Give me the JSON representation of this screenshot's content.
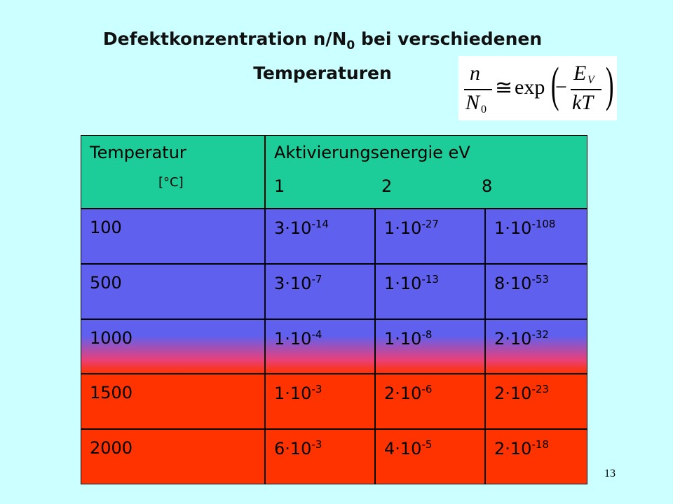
{
  "title": {
    "main": "Defektkonzentration n/N",
    "subscript": "0",
    "rest": "bei verschiedenen",
    "line2": "Temperaturen"
  },
  "formula": {
    "numerator": "n",
    "denominator": "N",
    "denominator_subscript": "0",
    "relation": "≅",
    "function": "exp",
    "sign": "−",
    "energy": "E",
    "energy_subscript": "V",
    "divisor": "kT"
  },
  "table": {
    "header": {
      "temperature": "Temperatur",
      "unit": "[°C]",
      "energy": "Aktivierungsenergie eV",
      "energies": [
        "1",
        "2",
        "8"
      ]
    },
    "rows": [
      [
        "100",
        {
          "mantissa": "3·10",
          "exponent": "-14"
        },
        {
          "mantissa": "1·10",
          "exponent": "-27"
        },
        {
          "mantissa": "1·10",
          "exponent": "-108"
        }
      ],
      [
        "500",
        {
          "mantissa": "3·10",
          "exponent": "-7"
        },
        {
          "mantissa": "1·10",
          "exponent": "-13"
        },
        {
          "mantissa": "8·10",
          "exponent": "-53"
        }
      ],
      [
        "1000",
        {
          "mantissa": "1·10",
          "exponent": "-4"
        },
        {
          "mantissa": "1·10",
          "exponent": "-8"
        },
        {
          "mantissa": "2·10",
          "exponent": "-32"
        }
      ],
      [
        "1500",
        {
          "mantissa": "1·10",
          "exponent": "-3"
        },
        {
          "mantissa": "2·10",
          "exponent": "-6"
        },
        {
          "mantissa": "2·10",
          "exponent": "-23"
        }
      ],
      [
        "2000",
        {
          "mantissa": "6·10",
          "exponent": "-3"
        },
        {
          "mantissa": "4·10",
          "exponent": "-5"
        },
        {
          "mantissa": "2·10",
          "exponent": "-18"
        }
      ]
    ]
  },
  "page_number": "13"
}
